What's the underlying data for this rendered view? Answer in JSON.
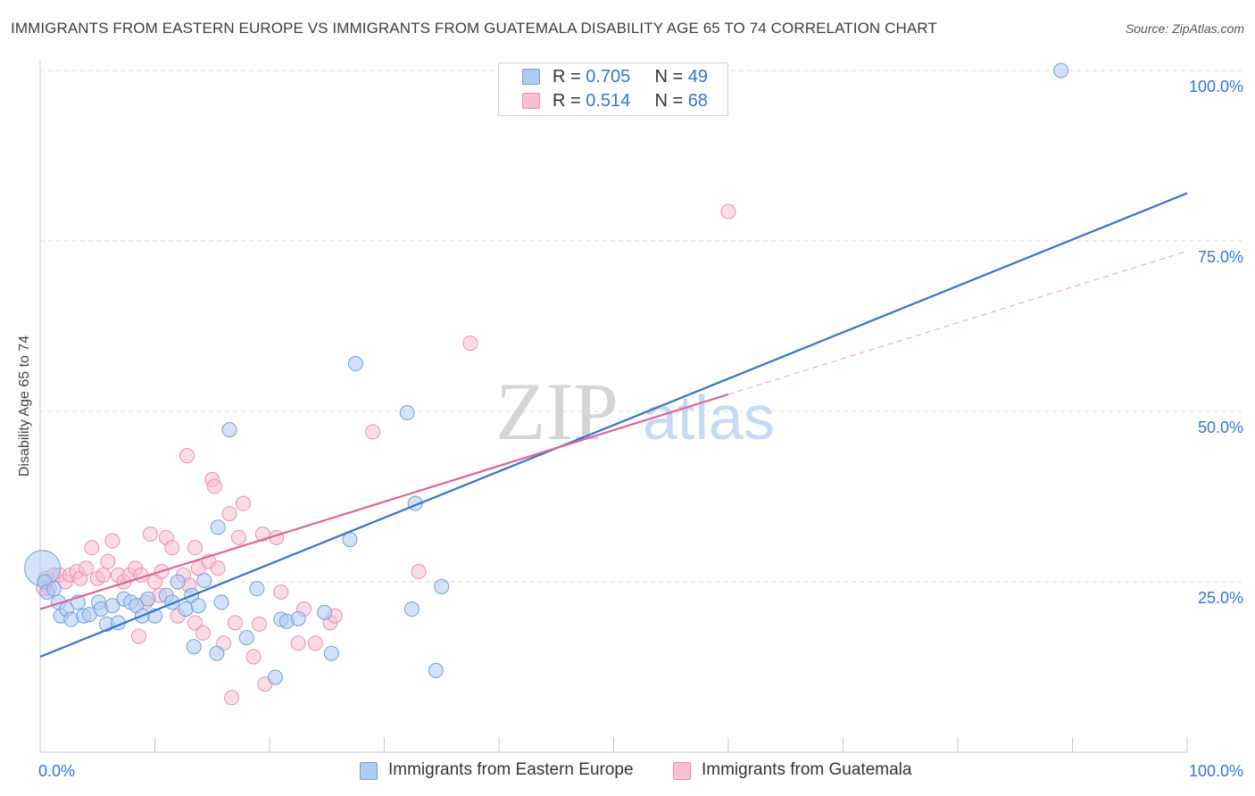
{
  "header": {
    "title": "IMMIGRANTS FROM EASTERN EUROPE VS IMMIGRANTS FROM GUATEMALA DISABILITY AGE 65 TO 74 CORRELATION CHART",
    "source": "Source: ZipAtlas.com"
  },
  "legend": {
    "blue": {
      "r_label": "R =",
      "r_value": "0.705",
      "n_label": "N =",
      "n_value": "49"
    },
    "pink": {
      "r_label": "R =",
      "r_value": "0.514",
      "n_label": "N =",
      "n_value": "68"
    }
  },
  "watermark": {
    "zip": "ZIP",
    "atlas": "atlas"
  },
  "colors": {
    "blue_fill": "#aecbf2",
    "blue_stroke": "#6f9fe0",
    "blue_line": "#2f74d0",
    "pink_fill": "#f7bfd0",
    "pink_stroke": "#ef8fae",
    "pink_line": "#e0649a",
    "tick_label": "#3574d4",
    "grid": "#dddddd"
  },
  "chart_data": {
    "type": "scatter",
    "title": "IMMIGRANTS FROM EASTERN EUROPE VS IMMIGRANTS FROM GUATEMALA DISABILITY AGE 65 TO 74 CORRELATION CHART",
    "xlabel": "",
    "ylabel": "Disability Age 65 to 74",
    "xlim": [
      0,
      100
    ],
    "ylim": [
      0,
      100
    ],
    "x_tick_labels": [
      {
        "value": 0,
        "label": "0.0%"
      },
      {
        "value": 100,
        "label": "100.0%"
      }
    ],
    "y_tick_labels": [
      {
        "value": 25,
        "label": "25.0%"
      },
      {
        "value": 50,
        "label": "50.0%"
      },
      {
        "value": 75,
        "label": "75.0%"
      },
      {
        "value": 100,
        "label": "100.0%"
      }
    ],
    "series": [
      {
        "name": "Immigrants from Eastern Europe",
        "color": "blue",
        "points": [
          [
            0.2,
            27
          ],
          [
            0.4,
            25
          ],
          [
            0.6,
            23.5
          ],
          [
            1.2,
            24
          ],
          [
            1.6,
            22
          ],
          [
            1.8,
            20
          ],
          [
            2.3,
            21
          ],
          [
            2.7,
            19.5
          ],
          [
            3.3,
            22
          ],
          [
            3.8,
            20
          ],
          [
            4.3,
            20.2
          ],
          [
            5.1,
            22
          ],
          [
            5.3,
            21
          ],
          [
            5.8,
            18.8
          ],
          [
            6.3,
            21.5
          ],
          [
            6.8,
            19
          ],
          [
            7.3,
            22.5
          ],
          [
            7.9,
            22
          ],
          [
            8.4,
            21.5
          ],
          [
            8.9,
            20
          ],
          [
            9.4,
            22.5
          ],
          [
            10.0,
            20
          ],
          [
            11.0,
            23
          ],
          [
            11.5,
            22
          ],
          [
            12.0,
            25
          ],
          [
            12.7,
            21
          ],
          [
            13.2,
            23
          ],
          [
            13.4,
            15.5
          ],
          [
            13.8,
            21.5
          ],
          [
            14.3,
            25.2
          ],
          [
            15.4,
            14.5
          ],
          [
            15.5,
            33
          ],
          [
            15.8,
            22
          ],
          [
            16.5,
            47.3
          ],
          [
            18.0,
            16.8
          ],
          [
            18.9,
            24
          ],
          [
            20.5,
            11
          ],
          [
            21.0,
            19.5
          ],
          [
            21.5,
            19.2
          ],
          [
            22.5,
            19.6
          ],
          [
            24.8,
            20.5
          ],
          [
            25.4,
            14.5
          ],
          [
            27.0,
            31.2
          ],
          [
            27.5,
            57
          ],
          [
            32.0,
            49.8
          ],
          [
            32.4,
            21
          ],
          [
            32.7,
            36.5
          ],
          [
            34.5,
            12
          ],
          [
            35.0,
            24.3
          ],
          [
            89.0,
            100
          ]
        ],
        "trend": {
          "x0": 0,
          "y0": 14,
          "x1": 100,
          "y1": 82
        }
      },
      {
        "name": "Immigrants from Guatemala",
        "color": "pink",
        "points": [
          [
            0.3,
            24
          ],
          [
            0.5,
            25.5
          ],
          [
            0.8,
            24
          ],
          [
            1.2,
            26
          ],
          [
            1.7,
            26
          ],
          [
            2.2,
            25
          ],
          [
            2.6,
            26
          ],
          [
            3.2,
            26.5
          ],
          [
            3.5,
            25.5
          ],
          [
            4.0,
            27
          ],
          [
            4.5,
            30
          ],
          [
            5.0,
            25.5
          ],
          [
            5.5,
            26
          ],
          [
            5.9,
            28
          ],
          [
            6.3,
            31
          ],
          [
            6.8,
            26
          ],
          [
            7.3,
            25
          ],
          [
            7.8,
            26
          ],
          [
            8.3,
            27
          ],
          [
            8.6,
            17
          ],
          [
            8.8,
            26
          ],
          [
            9.2,
            22
          ],
          [
            9.6,
            32
          ],
          [
            10.0,
            25
          ],
          [
            10.4,
            23
          ],
          [
            10.6,
            26.5
          ],
          [
            11.0,
            31.5
          ],
          [
            11.5,
            30
          ],
          [
            12.0,
            20
          ],
          [
            12.5,
            26
          ],
          [
            13.0,
            24.5
          ],
          [
            12.8,
            43.5
          ],
          [
            13.5,
            30
          ],
          [
            13.5,
            19
          ],
          [
            13.8,
            27
          ],
          [
            14.2,
            17.5
          ],
          [
            14.7,
            28
          ],
          [
            15.0,
            40
          ],
          [
            15.2,
            39
          ],
          [
            15.5,
            27
          ],
          [
            16.0,
            16
          ],
          [
            16.5,
            35
          ],
          [
            16.7,
            8
          ],
          [
            17.0,
            19
          ],
          [
            17.3,
            31.5
          ],
          [
            17.7,
            36.5
          ],
          [
            18.6,
            14
          ],
          [
            19.1,
            18.8
          ],
          [
            19.4,
            32
          ],
          [
            19.6,
            10
          ],
          [
            20.6,
            31.5
          ],
          [
            21.0,
            23.5
          ],
          [
            22.5,
            16
          ],
          [
            23.0,
            21
          ],
          [
            24.0,
            16
          ],
          [
            25.3,
            19
          ],
          [
            25.7,
            20
          ],
          [
            29.0,
            47
          ],
          [
            33.0,
            26.5
          ],
          [
            37.5,
            60
          ],
          [
            60.0,
            79.3
          ]
        ],
        "trend": {
          "x0": 0,
          "y0": 21,
          "x1": 60,
          "y1": 52.5
        },
        "trend_extension": {
          "x0": 60,
          "y0": 52.5,
          "x1": 100,
          "y1": 73.5
        }
      }
    ]
  }
}
